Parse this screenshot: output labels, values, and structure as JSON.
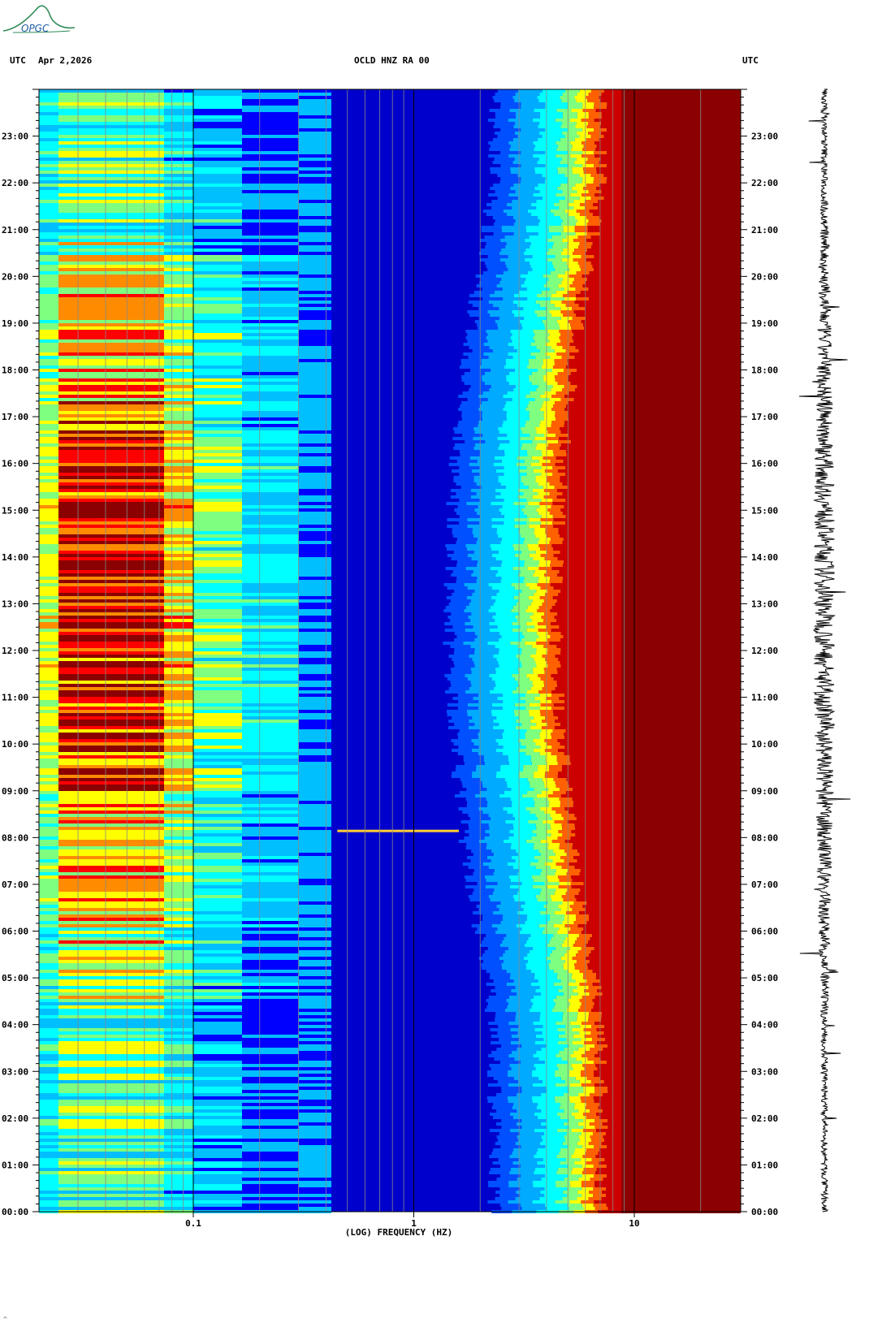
{
  "header": {
    "left_tz": "UTC",
    "date": "Apr 2,2026",
    "station": "OCLD HNZ RA 00",
    "right_tz": "UTC"
  },
  "logo": {
    "text": "OPGC",
    "color": "#2e8b57",
    "text_color": "#1f5fa8"
  },
  "chart_data": {
    "type": "heatmap",
    "title": "OCLD HNZ RA 00",
    "xlabel": "(LOG) FREQUENCY (HZ)",
    "ylabel": "UTC",
    "x_scale": "log",
    "xlim": [
      0.021,
      30
    ],
    "ylim": [
      "00:00",
      "24:00"
    ],
    "x_ticks": [
      "0.1",
      "1",
      "10"
    ],
    "x_tick_values": [
      0.1,
      1,
      10
    ],
    "y_ticks": [
      "00:00",
      "01:00",
      "02:00",
      "03:00",
      "04:00",
      "05:00",
      "06:00",
      "07:00",
      "08:00",
      "09:00",
      "10:00",
      "11:00",
      "12:00",
      "13:00",
      "14:00",
      "15:00",
      "16:00",
      "17:00",
      "18:00",
      "19:00",
      "20:00",
      "21:00",
      "22:00",
      "23:00"
    ],
    "colormap": [
      "#00008b",
      "#0000ff",
      "#00bfff",
      "#00ffff",
      "#7fff7f",
      "#ffff00",
      "#ff8c00",
      "#ff0000",
      "#8b0000"
    ],
    "gridlines_hz": [
      0.03,
      0.04,
      0.05,
      0.06,
      0.07,
      0.08,
      0.09,
      0.1,
      0.2,
      0.3,
      0.4,
      0.5,
      0.6,
      0.7,
      0.8,
      0.9,
      1,
      2,
      3,
      4,
      5,
      6,
      7,
      8,
      9,
      10,
      20
    ],
    "noise_floor_edge_hz": 1.8,
    "saturation_above_hz": 9.5,
    "event_line": {
      "time": "08:08",
      "f_from_hz": 0.45,
      "f_to_hz": 1.6
    }
  },
  "seismogram": {
    "label": "waveform trace",
    "color": "#000000"
  },
  "footer": {
    "mark": "^"
  }
}
